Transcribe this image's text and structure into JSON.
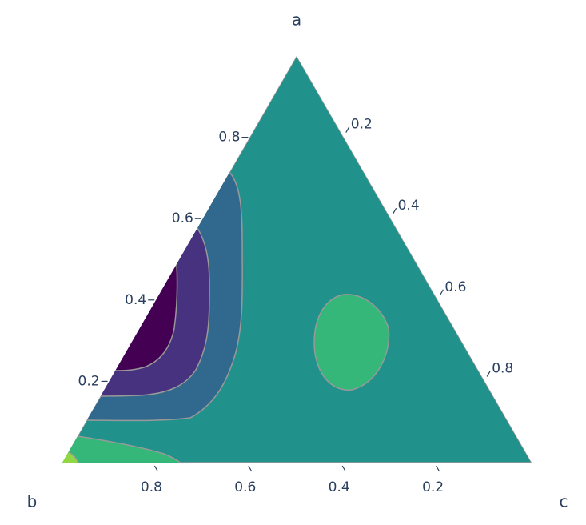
{
  "chart_data": {
    "type": "ternary-contour",
    "aaxis": {
      "title": "a",
      "ticks": [
        0.2,
        0.4,
        0.6,
        0.8
      ]
    },
    "baxis": {
      "title": "b",
      "ticks": [
        0.2,
        0.4,
        0.6,
        0.8
      ]
    },
    "caxis": {
      "title": "c",
      "ticks": [
        0.2,
        0.4,
        0.6,
        0.8
      ]
    },
    "contour_colors": [
      "#440154",
      "#46327e",
      "#31688e",
      "#21918c",
      "#35b779",
      "#90d743"
    ],
    "contour_line_color": "#999999"
  }
}
